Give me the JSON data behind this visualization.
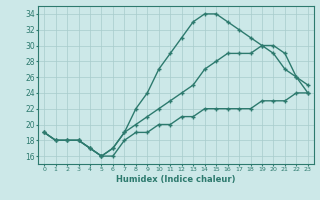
{
  "xlabel": "Humidex (Indice chaleur)",
  "ylabel": "",
  "bg_color": "#cce8e8",
  "line_color": "#2d7a6e",
  "xlim": [
    -0.5,
    23.5
  ],
  "ylim": [
    15.0,
    35.0
  ],
  "yticks": [
    16,
    18,
    20,
    22,
    24,
    26,
    28,
    30,
    32,
    34
  ],
  "xticks": [
    0,
    1,
    2,
    3,
    4,
    5,
    6,
    7,
    8,
    9,
    10,
    11,
    12,
    13,
    14,
    15,
    16,
    17,
    18,
    19,
    20,
    21,
    22,
    23
  ],
  "line1_x": [
    0,
    1,
    2,
    3,
    4,
    5,
    6,
    7,
    8,
    9,
    10,
    11,
    12,
    13,
    14,
    15,
    16,
    17,
    18,
    19,
    20,
    21,
    22,
    23
  ],
  "line1_y": [
    19,
    18,
    18,
    18,
    17,
    16,
    16,
    18,
    19,
    19,
    20,
    20,
    21,
    21,
    22,
    22,
    22,
    22,
    22,
    23,
    23,
    23,
    24,
    24
  ],
  "line2_x": [
    0,
    1,
    2,
    3,
    4,
    5,
    6,
    7,
    8,
    9,
    10,
    11,
    12,
    13,
    14,
    15,
    16,
    17,
    18,
    19,
    20,
    21,
    22,
    23
  ],
  "line2_y": [
    19,
    18,
    18,
    18,
    17,
    16,
    17,
    19,
    20,
    21,
    22,
    23,
    24,
    25,
    27,
    28,
    29,
    29,
    29,
    30,
    29,
    27,
    26,
    25
  ],
  "line3_x": [
    0,
    1,
    2,
    3,
    4,
    5,
    6,
    7,
    8,
    9,
    10,
    11,
    12,
    13,
    14,
    15,
    16,
    17,
    18,
    19,
    20,
    21,
    22,
    23
  ],
  "line3_y": [
    19,
    18,
    18,
    18,
    17,
    16,
    17,
    19,
    22,
    24,
    27,
    29,
    31,
    33,
    34,
    34,
    33,
    32,
    31,
    30,
    30,
    29,
    26,
    24
  ]
}
